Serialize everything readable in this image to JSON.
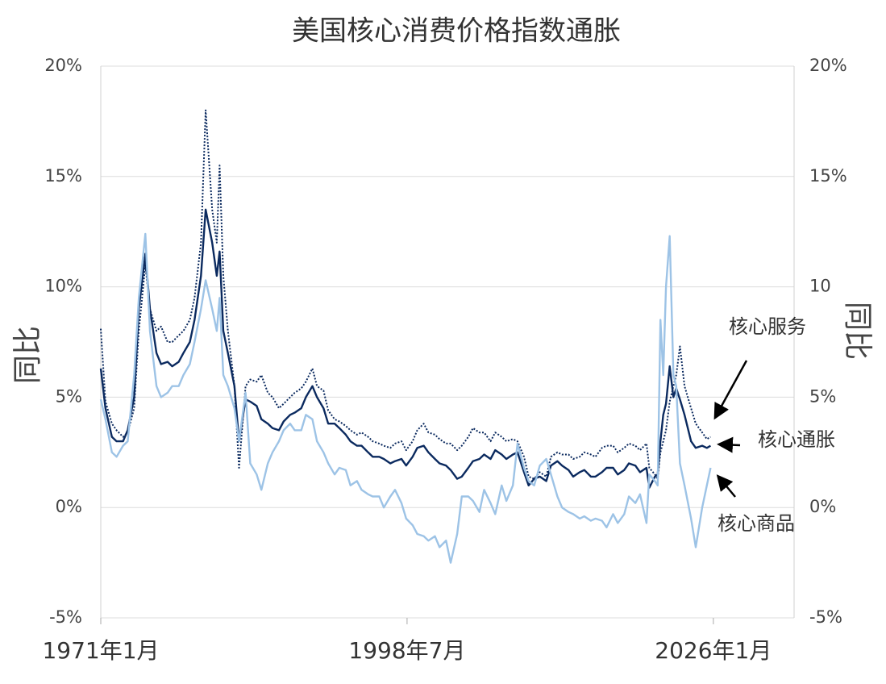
{
  "chart_data": {
    "type": "line",
    "title": "美国核心消费价格指数通胀",
    "y_label": "同比",
    "y2_label": "同比",
    "x": [
      "1971-01",
      "1971-06",
      "1972-01",
      "1972-06",
      "1973-01",
      "1973-06",
      "1974-01",
      "1974-06",
      "1975-01",
      "1975-06",
      "1976-01",
      "1976-06",
      "1977-01",
      "1977-06",
      "1978-01",
      "1978-06",
      "1979-01",
      "1979-06",
      "1980-01",
      "1980-06",
      "1981-01",
      "1981-06",
      "1981-09",
      "1982-01",
      "1982-06",
      "1983-01",
      "1983-06",
      "1984-01",
      "1984-06",
      "1985-01",
      "1985-06",
      "1986-01",
      "1986-06",
      "1987-01",
      "1987-06",
      "1988-01",
      "1988-06",
      "1989-01",
      "1989-06",
      "1990-01",
      "1990-06",
      "1991-01",
      "1991-06",
      "1992-01",
      "1992-06",
      "1993-01",
      "1993-06",
      "1994-01",
      "1994-06",
      "1995-01",
      "1995-06",
      "1996-01",
      "1996-06",
      "1997-01",
      "1997-06",
      "1998-01",
      "1998-06",
      "1999-01",
      "1999-06",
      "2000-01",
      "2000-06",
      "2001-01",
      "2001-06",
      "2002-01",
      "2002-06",
      "2003-01",
      "2003-06",
      "2004-01",
      "2004-06",
      "2005-01",
      "2005-06",
      "2006-01",
      "2006-06",
      "2007-01",
      "2007-06",
      "2008-01",
      "2008-06",
      "2009-01",
      "2009-06",
      "2009-12",
      "2010-06",
      "2011-01",
      "2011-06",
      "2012-01",
      "2012-06",
      "2013-01",
      "2013-06",
      "2014-01",
      "2014-06",
      "2015-01",
      "2015-06",
      "2016-01",
      "2016-06",
      "2017-01",
      "2017-06",
      "2018-01",
      "2018-06",
      "2019-01",
      "2019-06",
      "2020-01",
      "2020-04",
      "2020-10",
      "2021-01",
      "2021-04",
      "2021-07",
      "2021-10",
      "2022-02",
      "2022-06",
      "2022-09",
      "2023-01",
      "2023-06",
      "2024-01",
      "2024-06",
      "2025-01",
      "2025-06",
      "2025-10"
    ],
    "series": [
      {
        "name": "核心服务",
        "color": "#0b2a5f",
        "line_style": "dotted",
        "values": [
          8.1,
          4.8,
          3.8,
          3.5,
          3.2,
          3.4,
          4.5,
          8.0,
          11.0,
          9.0,
          8.0,
          8.2,
          7.5,
          7.5,
          7.8,
          8.0,
          8.5,
          9.5,
          12.0,
          18.0,
          13.5,
          12.0,
          15.5,
          10.5,
          8.0,
          5.5,
          1.8,
          5.5,
          5.8,
          5.7,
          6.0,
          5.2,
          5.0,
          4.5,
          4.7,
          5.0,
          5.2,
          5.4,
          5.7,
          6.3,
          5.5,
          5.3,
          4.4,
          4.0,
          3.9,
          3.7,
          3.5,
          3.3,
          3.4,
          3.2,
          3.0,
          2.9,
          2.8,
          2.7,
          2.9,
          3.0,
          2.6,
          3.0,
          3.5,
          3.8,
          3.4,
          3.3,
          3.1,
          2.9,
          2.9,
          2.6,
          2.8,
          3.2,
          3.6,
          3.4,
          3.4,
          3.0,
          3.4,
          3.2,
          3.0,
          3.1,
          3.0,
          2.3,
          1.4,
          1.3,
          1.6,
          1.4,
          2.3,
          2.5,
          2.4,
          2.4,
          2.2,
          2.3,
          2.5,
          2.4,
          2.3,
          2.7,
          2.8,
          2.8,
          2.5,
          2.7,
          2.9,
          2.8,
          2.6,
          2.9,
          1.8,
          1.5,
          1.3,
          2.5,
          3.0,
          3.5,
          4.8,
          5.5,
          6.0,
          7.3,
          5.5,
          4.5,
          3.8,
          3.4,
          3.1,
          3.2
        ]
      },
      {
        "name": "核心通胀",
        "color": "#0b2a5f",
        "line_style": "solid",
        "values": [
          6.3,
          4.5,
          3.2,
          3.0,
          3.0,
          3.5,
          5.0,
          9.0,
          11.5,
          9.0,
          7.0,
          6.5,
          6.6,
          6.4,
          6.6,
          7.0,
          7.5,
          8.5,
          10.5,
          13.5,
          12.0,
          10.5,
          11.6,
          8.0,
          7.0,
          5.5,
          3.0,
          4.9,
          4.8,
          4.6,
          4.0,
          3.8,
          3.6,
          3.5,
          3.9,
          4.2,
          4.3,
          4.5,
          5.0,
          5.5,
          5.0,
          4.5,
          3.8,
          3.8,
          3.6,
          3.3,
          3.0,
          2.8,
          2.8,
          2.5,
          2.3,
          2.3,
          2.2,
          2.0,
          2.1,
          2.2,
          1.9,
          2.3,
          2.7,
          2.8,
          2.5,
          2.2,
          2.0,
          1.9,
          1.7,
          1.3,
          1.4,
          1.8,
          2.1,
          2.2,
          2.4,
          2.2,
          2.6,
          2.4,
          2.2,
          2.4,
          2.5,
          1.6,
          1.0,
          1.3,
          1.4,
          1.2,
          1.9,
          2.1,
          1.9,
          1.7,
          1.4,
          1.6,
          1.7,
          1.4,
          1.4,
          1.6,
          1.8,
          1.8,
          1.5,
          1.7,
          2.0,
          1.9,
          1.6,
          1.8,
          0.9,
          1.4,
          1.5,
          3.0,
          4.2,
          4.7,
          6.4,
          5.0,
          5.4,
          4.9,
          4.2,
          3.0,
          2.7,
          2.8,
          2.7,
          2.8
        ]
      },
      {
        "name": "核心商品",
        "color": "#9dc3e6",
        "line_style": "solid",
        "values": [
          4.9,
          4.0,
          2.5,
          2.3,
          2.8,
          3.0,
          6.0,
          9.5,
          12.4,
          8.0,
          5.5,
          5.0,
          5.2,
          5.5,
          5.5,
          6.0,
          6.5,
          7.5,
          9.0,
          10.3,
          9.0,
          8.0,
          9.5,
          6.0,
          5.5,
          4.5,
          3.0,
          5.2,
          2.0,
          1.5,
          0.8,
          2.0,
          2.5,
          3.0,
          3.5,
          3.8,
          3.5,
          3.5,
          4.2,
          4.0,
          3.0,
          2.5,
          2.0,
          1.5,
          1.8,
          1.7,
          1.0,
          1.2,
          0.8,
          0.6,
          0.5,
          0.5,
          0.0,
          0.5,
          0.8,
          0.2,
          -0.5,
          -0.8,
          -1.2,
          -1.3,
          -1.5,
          -1.3,
          -1.8,
          -1.5,
          -2.5,
          -1.2,
          0.5,
          0.5,
          0.3,
          -0.2,
          0.8,
          0.2,
          -0.3,
          1.0,
          0.3,
          1.0,
          2.9,
          1.8,
          1.2,
          1.0,
          1.9,
          2.2,
          1.5,
          0.5,
          0.0,
          -0.2,
          -0.3,
          -0.5,
          -0.4,
          -0.6,
          -0.5,
          -0.6,
          -0.9,
          -0.3,
          -0.7,
          -0.3,
          0.5,
          0.2,
          0.6,
          -0.7,
          1.5,
          1.2,
          1.0,
          8.5,
          6.0,
          10.0,
          12.3,
          6.0,
          5.5,
          2.0,
          1.0,
          -0.5,
          -1.8,
          0.0,
          1.0,
          1.8
        ]
      }
    ],
    "xlim": [
      "1971-01",
      "2033-04"
    ],
    "xticks": [
      {
        "value": "1971-01",
        "label": "1971年1月"
      },
      {
        "value": "1998-07",
        "label": "1998年7月"
      },
      {
        "value": "2026-01",
        "label": "2026年1月"
      }
    ],
    "ylim": [
      -5,
      20
    ],
    "yticks": [
      {
        "value": -5,
        "label": "-5%"
      },
      {
        "value": 0,
        "label": "0%"
      },
      {
        "value": 5,
        "label": "5%"
      },
      {
        "value": 10,
        "label": "10%"
      },
      {
        "value": 15,
        "label": "15%"
      },
      {
        "value": 20,
        "label": "20%"
      }
    ],
    "y2lim": [
      -5,
      20
    ],
    "y2ticks": [
      {
        "value": -5,
        "label": "-5%"
      },
      {
        "value": 0,
        "label": "0%"
      },
      {
        "value": 5,
        "label": "5%"
      },
      10,
      {
        "value": 15,
        "label": "15%"
      },
      {
        "value": 20,
        "label": "20%"
      }
    ],
    "grid": true
  }
}
